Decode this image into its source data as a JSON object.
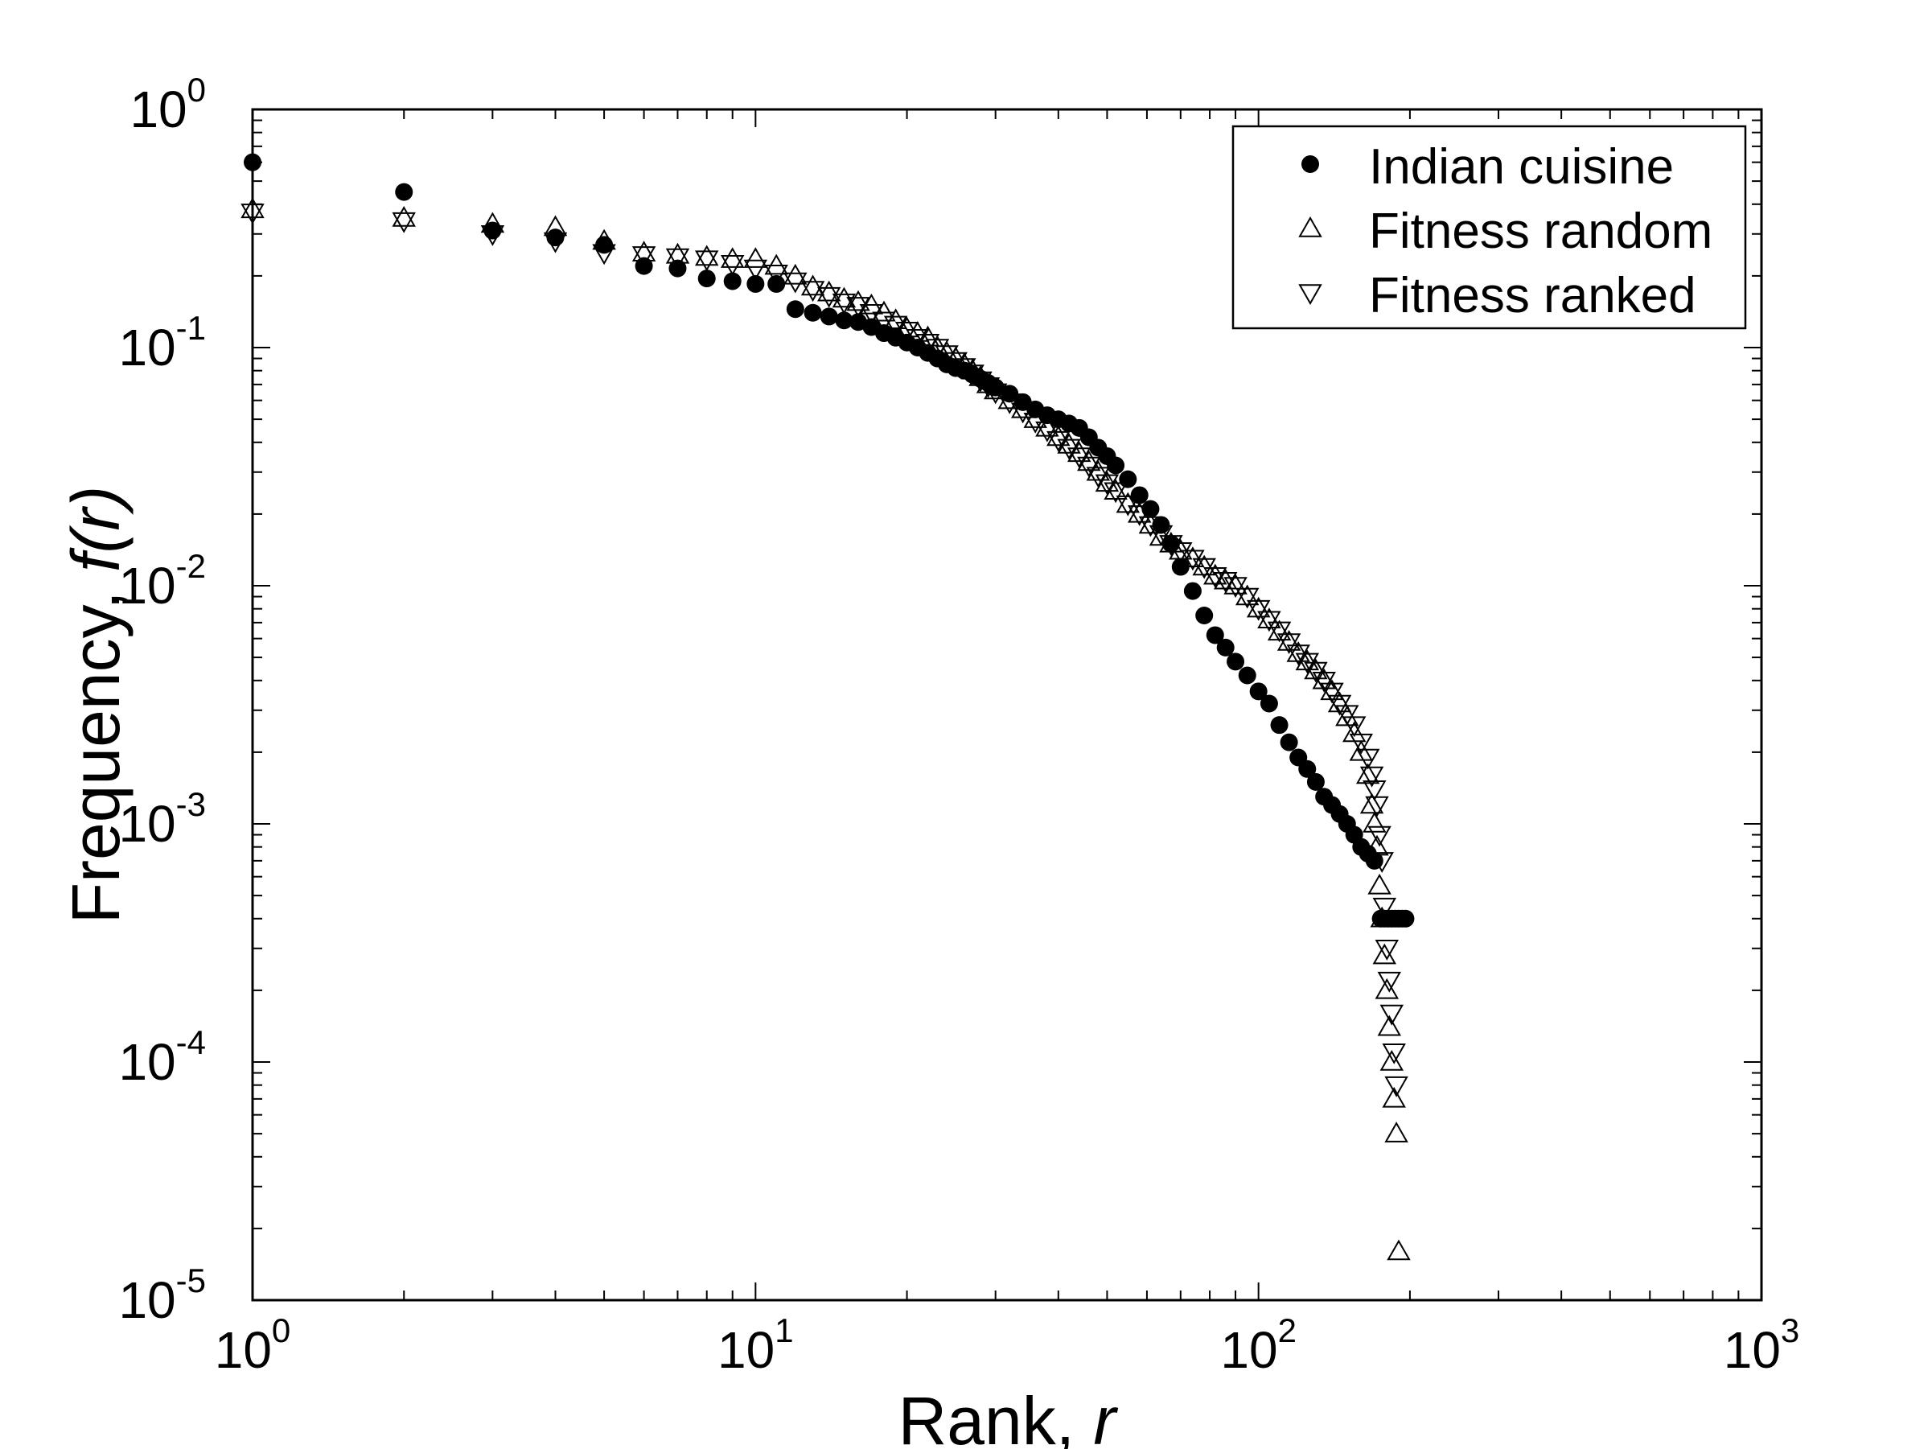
{
  "chart_data": {
    "type": "scatter",
    "xscale": "log",
    "yscale": "log",
    "xlim": [
      1,
      1000
    ],
    "ylim": [
      1e-05,
      1
    ],
    "grid": false,
    "legend_position": "top-right",
    "xlabel": {
      "text": "Rank, ",
      "var": "r"
    },
    "ylabel": {
      "text": "Frequency, ",
      "var": "f(r)"
    },
    "x_ticks": [
      {
        "base": "10",
        "exp": "0",
        "value": 1
      },
      {
        "base": "10",
        "exp": "1",
        "value": 10
      },
      {
        "base": "10",
        "exp": "2",
        "value": 100
      },
      {
        "base": "10",
        "exp": "3",
        "value": 1000
      }
    ],
    "y_ticks": [
      {
        "base": "10",
        "exp": "0",
        "value": 1
      },
      {
        "base": "10",
        "exp": "-1",
        "value": 0.1
      },
      {
        "base": "10",
        "exp": "-2",
        "value": 0.01
      },
      {
        "base": "10",
        "exp": "-3",
        "value": 0.001
      },
      {
        "base": "10",
        "exp": "-4",
        "value": 0.0001
      },
      {
        "base": "10",
        "exp": "-5",
        "value": 1e-05
      }
    ],
    "series": [
      {
        "name": "Indian cuisine",
        "marker": "filled-circle",
        "points": [
          [
            1,
            0.6
          ],
          [
            2,
            0.45
          ],
          [
            3,
            0.31
          ],
          [
            4,
            0.29
          ],
          [
            5,
            0.27
          ],
          [
            6,
            0.22
          ],
          [
            7,
            0.215
          ],
          [
            8,
            0.195
          ],
          [
            9,
            0.19
          ],
          [
            10,
            0.185
          ],
          [
            11,
            0.185
          ],
          [
            12,
            0.145
          ],
          [
            13,
            0.14
          ],
          [
            14,
            0.135
          ],
          [
            15,
            0.13
          ],
          [
            16,
            0.128
          ],
          [
            17,
            0.122
          ],
          [
            18,
            0.115
          ],
          [
            19,
            0.11
          ],
          [
            20,
            0.105
          ],
          [
            21,
            0.1
          ],
          [
            22,
            0.095
          ],
          [
            23,
            0.09
          ],
          [
            24,
            0.085
          ],
          [
            25,
            0.082
          ],
          [
            26,
            0.08
          ],
          [
            27,
            0.077
          ],
          [
            28,
            0.074
          ],
          [
            29,
            0.071
          ],
          [
            30,
            0.068
          ],
          [
            32,
            0.064
          ],
          [
            34,
            0.059
          ],
          [
            36,
            0.055
          ],
          [
            38,
            0.052
          ],
          [
            40,
            0.05
          ],
          [
            42,
            0.048
          ],
          [
            44,
            0.046
          ],
          [
            46,
            0.042
          ],
          [
            48,
            0.038
          ],
          [
            50,
            0.035
          ],
          [
            52,
            0.032
          ],
          [
            55,
            0.028
          ],
          [
            58,
            0.024
          ],
          [
            61,
            0.021
          ],
          [
            64,
            0.018
          ],
          [
            67,
            0.015
          ],
          [
            70,
            0.012
          ],
          [
            74,
            0.0095
          ],
          [
            78,
            0.0075
          ],
          [
            82,
            0.0062
          ],
          [
            86,
            0.0055
          ],
          [
            90,
            0.0048
          ],
          [
            95,
            0.0042
          ],
          [
            100,
            0.0036
          ],
          [
            105,
            0.0032
          ],
          [
            110,
            0.0026
          ],
          [
            115,
            0.0022
          ],
          [
            120,
            0.0019
          ],
          [
            125,
            0.0017
          ],
          [
            130,
            0.0015
          ],
          [
            135,
            0.0013
          ],
          [
            140,
            0.0012
          ],
          [
            145,
            0.0011
          ],
          [
            150,
            0.001
          ],
          [
            155,
            0.0009
          ],
          [
            160,
            0.0008
          ],
          [
            165,
            0.00075
          ],
          [
            170,
            0.0007
          ],
          [
            175,
            0.0004
          ],
          [
            178,
            0.0004
          ],
          [
            181,
            0.0004
          ],
          [
            184,
            0.0004
          ],
          [
            187,
            0.0004
          ],
          [
            190,
            0.0004
          ],
          [
            193,
            0.0004
          ],
          [
            196,
            0.0004
          ]
        ]
      },
      {
        "name": "Fitness random",
        "marker": "open-triangle-up",
        "points": [
          [
            1,
            0.38
          ],
          [
            2,
            0.35
          ],
          [
            3,
            0.33
          ],
          [
            4,
            0.32
          ],
          [
            5,
            0.28
          ],
          [
            6,
            0.25
          ],
          [
            7,
            0.245
          ],
          [
            8,
            0.24
          ],
          [
            9,
            0.235
          ],
          [
            10,
            0.235
          ],
          [
            11,
            0.22
          ],
          [
            12,
            0.2
          ],
          [
            13,
            0.18
          ],
          [
            14,
            0.17
          ],
          [
            15,
            0.16
          ],
          [
            16,
            0.155
          ],
          [
            17,
            0.15
          ],
          [
            18,
            0.14
          ],
          [
            19,
            0.13
          ],
          [
            20,
            0.12
          ],
          [
            21,
            0.115
          ],
          [
            22,
            0.11
          ],
          [
            23,
            0.1
          ],
          [
            24,
            0.095
          ],
          [
            25,
            0.09
          ],
          [
            26,
            0.085
          ],
          [
            27,
            0.08
          ],
          [
            28,
            0.075
          ],
          [
            29,
            0.07
          ],
          [
            30,
            0.066
          ],
          [
            32,
            0.06
          ],
          [
            34,
            0.055
          ],
          [
            36,
            0.05
          ],
          [
            38,
            0.046
          ],
          [
            40,
            0.042
          ],
          [
            42,
            0.039
          ],
          [
            44,
            0.036
          ],
          [
            46,
            0.033
          ],
          [
            48,
            0.03
          ],
          [
            50,
            0.027
          ],
          [
            52,
            0.025
          ],
          [
            55,
            0.022
          ],
          [
            58,
            0.02
          ],
          [
            61,
            0.018
          ],
          [
            64,
            0.016
          ],
          [
            67,
            0.015
          ],
          [
            70,
            0.014
          ],
          [
            74,
            0.013
          ],
          [
            78,
            0.012
          ],
          [
            82,
            0.011
          ],
          [
            86,
            0.0105
          ],
          [
            90,
            0.01
          ],
          [
            95,
            0.009
          ],
          [
            100,
            0.008
          ],
          [
            105,
            0.0072
          ],
          [
            110,
            0.0064
          ],
          [
            115,
            0.0058
          ],
          [
            120,
            0.0052
          ],
          [
            125,
            0.0048
          ],
          [
            130,
            0.0044
          ],
          [
            135,
            0.004
          ],
          [
            140,
            0.0036
          ],
          [
            145,
            0.0032
          ],
          [
            150,
            0.0028
          ],
          [
            155,
            0.0024
          ],
          [
            160,
            0.002
          ],
          [
            165,
            0.0016
          ],
          [
            168,
            0.0012
          ],
          [
            170,
            0.001
          ],
          [
            172,
            0.0008
          ],
          [
            174,
            0.00055
          ],
          [
            176,
            0.0004
          ],
          [
            178,
            0.00028
          ],
          [
            180,
            0.0002
          ],
          [
            182,
            0.00014
          ],
          [
            184,
            0.0001
          ],
          [
            186,
            7e-05
          ],
          [
            188,
            5e-05
          ],
          [
            190,
            1.6e-05
          ]
        ]
      },
      {
        "name": "Fitness ranked",
        "marker": "open-triangle-down",
        "points": [
          [
            1,
            0.37
          ],
          [
            2,
            0.34
          ],
          [
            3,
            0.3
          ],
          [
            4,
            0.28
          ],
          [
            5,
            0.25
          ],
          [
            6,
            0.245
          ],
          [
            7,
            0.24
          ],
          [
            8,
            0.235
          ],
          [
            9,
            0.225
          ],
          [
            10,
            0.215
          ],
          [
            11,
            0.205
          ],
          [
            12,
            0.19
          ],
          [
            13,
            0.175
          ],
          [
            14,
            0.165
          ],
          [
            15,
            0.155
          ],
          [
            16,
            0.15
          ],
          [
            17,
            0.14
          ],
          [
            18,
            0.13
          ],
          [
            19,
            0.125
          ],
          [
            20,
            0.118
          ],
          [
            21,
            0.11
          ],
          [
            22,
            0.105
          ],
          [
            23,
            0.1
          ],
          [
            24,
            0.094
          ],
          [
            25,
            0.088
          ],
          [
            26,
            0.083
          ],
          [
            27,
            0.078
          ],
          [
            28,
            0.073
          ],
          [
            29,
            0.069
          ],
          [
            30,
            0.065
          ],
          [
            32,
            0.059
          ],
          [
            34,
            0.054
          ],
          [
            36,
            0.049
          ],
          [
            38,
            0.045
          ],
          [
            40,
            0.041
          ],
          [
            42,
            0.038
          ],
          [
            44,
            0.035
          ],
          [
            46,
            0.032
          ],
          [
            48,
            0.029
          ],
          [
            50,
            0.027
          ],
          [
            52,
            0.025
          ],
          [
            55,
            0.022
          ],
          [
            58,
            0.02
          ],
          [
            61,
            0.018
          ],
          [
            64,
            0.0165
          ],
          [
            67,
            0.015
          ],
          [
            70,
            0.014
          ],
          [
            74,
            0.013
          ],
          [
            78,
            0.012
          ],
          [
            82,
            0.011
          ],
          [
            86,
            0.0105
          ],
          [
            90,
            0.01
          ],
          [
            95,
            0.009
          ],
          [
            100,
            0.008
          ],
          [
            105,
            0.0072
          ],
          [
            110,
            0.0065
          ],
          [
            115,
            0.0058
          ],
          [
            120,
            0.0052
          ],
          [
            125,
            0.0048
          ],
          [
            130,
            0.0044
          ],
          [
            135,
            0.004
          ],
          [
            140,
            0.0036
          ],
          [
            145,
            0.0032
          ],
          [
            150,
            0.0029
          ],
          [
            155,
            0.0026
          ],
          [
            160,
            0.0022
          ],
          [
            165,
            0.0019
          ],
          [
            168,
            0.0016
          ],
          [
            170,
            0.0014
          ],
          [
            172,
            0.0012
          ],
          [
            174,
            0.0009
          ],
          [
            176,
            0.0007
          ],
          [
            178,
            0.00045
          ],
          [
            180,
            0.0003
          ],
          [
            182,
            0.00022
          ],
          [
            184,
            0.00016
          ],
          [
            186,
            0.00011
          ],
          [
            188,
            8e-05
          ]
        ]
      }
    ]
  }
}
